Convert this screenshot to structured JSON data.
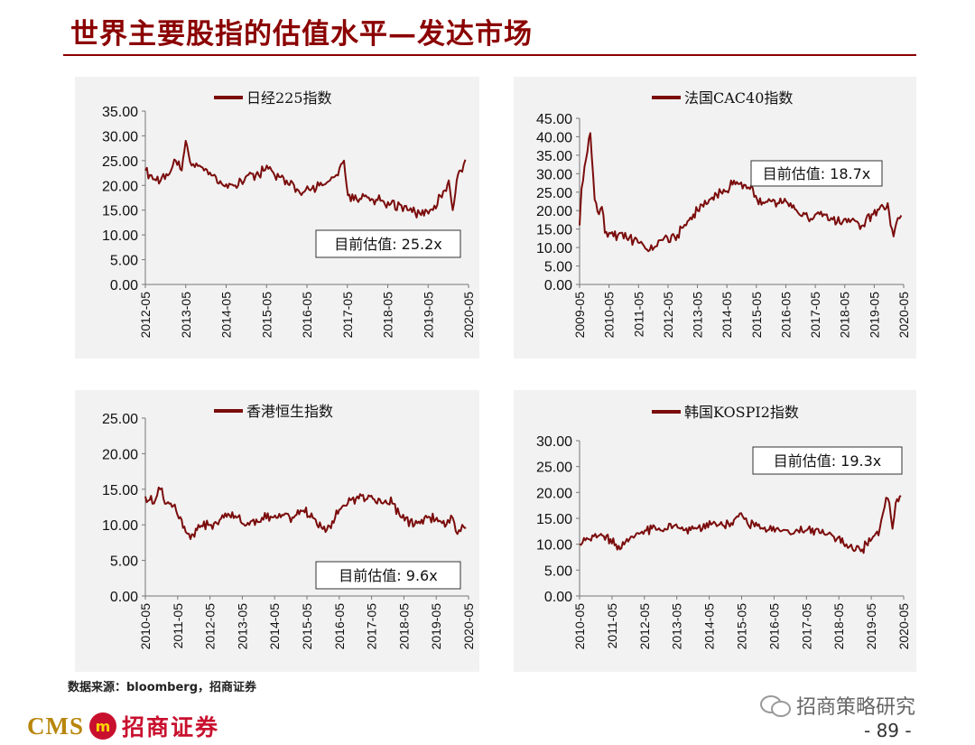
{
  "header": {
    "title": "世界主要股指的估值水平—发达市场"
  },
  "footer": {
    "source": "数据来源：bloomberg，招商证券",
    "brand_en": "CMS",
    "brand_logo": "m",
    "brand_cn": "招商证券",
    "wechat_name": "招商策略研究",
    "page_number": "- 89 -"
  },
  "colors": {
    "series": "#7b0c0c",
    "title": "#8b0000",
    "panel_bg": "#f2f2f2"
  },
  "chart_data": [
    {
      "type": "line",
      "legend": "日经225指数",
      "annotation": "目前估值:  25.2x",
      "yticks": [
        "35.00",
        "30.00",
        "25.00",
        "20.00",
        "15.00",
        "10.00",
        "5.00",
        "0.00"
      ],
      "ylim": [
        0,
        35
      ],
      "xticks": [
        "2012-05",
        "2013-05",
        "2014-05",
        "2015-05",
        "2016-05",
        "2017-05",
        "2018-05",
        "2019-05",
        "2020-05"
      ],
      "xlim": [
        2012.33,
        2020.5
      ],
      "series": [
        {
          "x": [
            2012.33,
            2012.6,
            2012.9,
            2013.1,
            2013.25,
            2013.35,
            2013.5,
            2013.7,
            2014.0,
            2014.3,
            2014.6,
            2014.9,
            2015.2,
            2015.4,
            2015.6,
            2015.9,
            2016.2,
            2016.5,
            2016.8,
            2017.0,
            2017.2,
            2017.35,
            2017.45,
            2017.6,
            2017.9,
            2018.2,
            2018.5,
            2018.8,
            2019.0,
            2019.3,
            2019.6,
            2019.9,
            2020.0,
            2020.1,
            2020.2,
            2020.3,
            2020.42
          ],
          "y": [
            23,
            21,
            22,
            25,
            23,
            29,
            24,
            24,
            22,
            20,
            20,
            22,
            22,
            24,
            22,
            21,
            19,
            19,
            20,
            21,
            22,
            25,
            18,
            17,
            18,
            17,
            16,
            16,
            15,
            14,
            15,
            19,
            21,
            15,
            21,
            23,
            25.2
          ]
        }
      ]
    },
    {
      "type": "line",
      "legend": "法国CAC40指数",
      "annotation": "目前估值:  18.7x",
      "yticks": [
        "45.00",
        "40.00",
        "35.00",
        "30.00",
        "25.00",
        "20.00",
        "15.00",
        "10.00",
        "5.00",
        "0.00"
      ],
      "ylim": [
        0,
        45
      ],
      "xticks": [
        "2009-05",
        "2010-05",
        "2011-05",
        "2012-05",
        "2013-05",
        "2014-05",
        "2015-05",
        "2016-05",
        "2017-05",
        "2018-05",
        "2019-05",
        "2020-05"
      ],
      "xlim": [
        2009.33,
        2020.5
      ],
      "series": [
        {
          "x": [
            2009.33,
            2009.4,
            2009.5,
            2009.6,
            2009.7,
            2009.85,
            2010.0,
            2010.1,
            2010.2,
            2010.35,
            2010.5,
            2010.8,
            2011.2,
            2011.5,
            2011.7,
            2011.9,
            2012.2,
            2012.6,
            2013.0,
            2013.4,
            2013.8,
            2014.2,
            2014.6,
            2015.0,
            2015.3,
            2015.45,
            2015.7,
            2016.0,
            2016.3,
            2016.6,
            2016.9,
            2017.2,
            2017.6,
            2018.0,
            2018.4,
            2018.9,
            2019.0,
            2019.4,
            2019.8,
            2019.95,
            2020.05,
            2020.15,
            2020.3,
            2020.42
          ],
          "y": [
            16,
            26,
            32,
            36,
            41,
            23,
            19,
            21,
            14,
            14,
            13,
            14,
            12,
            11,
            9,
            10,
            12,
            13,
            16,
            20,
            23,
            25,
            27,
            27,
            26,
            23,
            22,
            23,
            22,
            22,
            19,
            18,
            19,
            18,
            17,
            17,
            15,
            19,
            21,
            22,
            16,
            13,
            18,
            18.7
          ]
        }
      ]
    },
    {
      "type": "line",
      "legend": "香港恒生指数",
      "annotation": "目前估值:  9.6x",
      "yticks": [
        "25.00",
        "20.00",
        "15.00",
        "10.00",
        "5.00",
        "0.00"
      ],
      "ylim": [
        0,
        25
      ],
      "xticks": [
        "2010-05",
        "2011-05",
        "2012-05",
        "2013-05",
        "2014-05",
        "2015-05",
        "2016-05",
        "2017-05",
        "2018-05",
        "2019-05",
        "2020-05"
      ],
      "xlim": [
        2010.33,
        2020.5
      ],
      "series": [
        {
          "x": [
            2010.33,
            2010.6,
            2010.8,
            2011.0,
            2011.3,
            2011.6,
            2011.75,
            2012.0,
            2012.4,
            2012.8,
            2013.2,
            2013.6,
            2014.0,
            2014.5,
            2015.0,
            2015.3,
            2015.6,
            2016.0,
            2016.3,
            2016.7,
            2017.0,
            2017.4,
            2017.8,
            2018.1,
            2018.4,
            2018.8,
            2019.2,
            2019.5,
            2019.8,
            2020.0,
            2020.15,
            2020.3,
            2020.42
          ],
          "y": [
            14,
            13,
            15,
            13,
            12,
            9,
            8,
            10,
            10,
            11,
            11,
            10,
            11,
            11,
            11,
            12,
            11,
            9,
            11,
            13,
            14,
            14,
            13,
            13,
            11,
            10,
            11,
            11,
            10,
            11,
            8.7,
            10,
            9.6
          ]
        }
      ]
    },
    {
      "type": "line",
      "legend": "韩国KOSPI2指数",
      "annotation": "目前估值:  19.3x",
      "yticks": [
        "30.00",
        "25.00",
        "20.00",
        "15.00",
        "10.00",
        "5.00",
        "0.00"
      ],
      "ylim": [
        0,
        30
      ],
      "xticks": [
        "2010-05",
        "2011-05",
        "2012-05",
        "2013-05",
        "2014-05",
        "2015-05",
        "2016-05",
        "2017-05",
        "2018-05",
        "2019-05",
        "2020-05"
      ],
      "xlim": [
        2010.33,
        2020.5
      ],
      "series": [
        {
          "x": [
            2010.33,
            2010.6,
            2011.0,
            2011.3,
            2011.6,
            2011.9,
            2012.2,
            2012.6,
            2013.0,
            2013.5,
            2014.0,
            2014.5,
            2015.0,
            2015.4,
            2015.6,
            2016.0,
            2016.5,
            2017.0,
            2017.5,
            2018.0,
            2018.4,
            2018.7,
            2018.9,
            2019.2,
            2019.5,
            2019.75,
            2019.85,
            2019.95,
            2020.05,
            2020.15,
            2020.25,
            2020.42
          ],
          "y": [
            10,
            11,
            12,
            11,
            9,
            11,
            12,
            13,
            13,
            13,
            13,
            14,
            14,
            16,
            14,
            13,
            13,
            12,
            13,
            12,
            11,
            10,
            9,
            9,
            11,
            13,
            16,
            19,
            18,
            13,
            18,
            19.3
          ]
        }
      ]
    }
  ]
}
